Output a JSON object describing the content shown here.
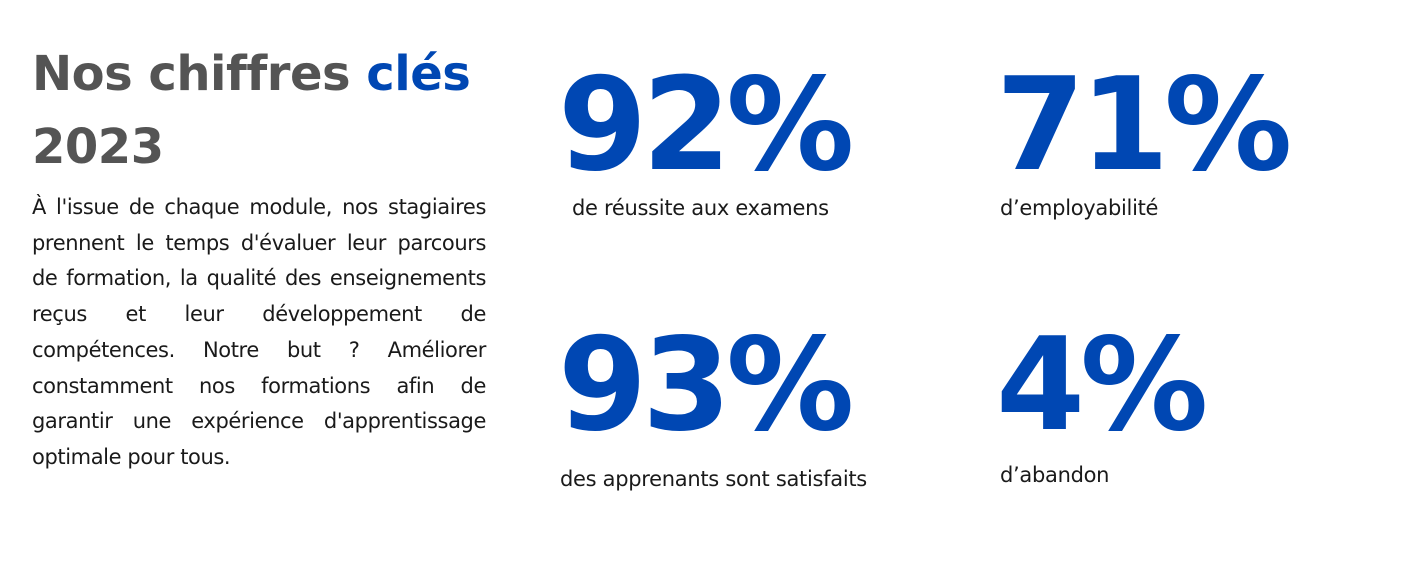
{
  "heading": {
    "part1": "Nos chiffres ",
    "accent": "clés",
    "part2": " 2023"
  },
  "description": "À l'issue de chaque module, nos stagiaires prennent le temps d'évaluer leur parcours de formation, la qualité des enseignements reçus et leur développement de compétences. Notre but ? Améliorer constamment nos formations afin de garantir une expérience d'apprentissage optimale pour tous.",
  "stats": [
    {
      "value": "92%",
      "label": "de réussite aux examens"
    },
    {
      "value": "71%",
      "label": "d’employabilité"
    },
    {
      "value": "93%",
      "label": "des apprenants sont satisfaits"
    },
    {
      "value": "4%",
      "label": "d’abandon"
    }
  ],
  "colors": {
    "accent": "#0047b3",
    "heading": "#545454",
    "text": "#1a1a1a",
    "background": "#ffffff"
  }
}
